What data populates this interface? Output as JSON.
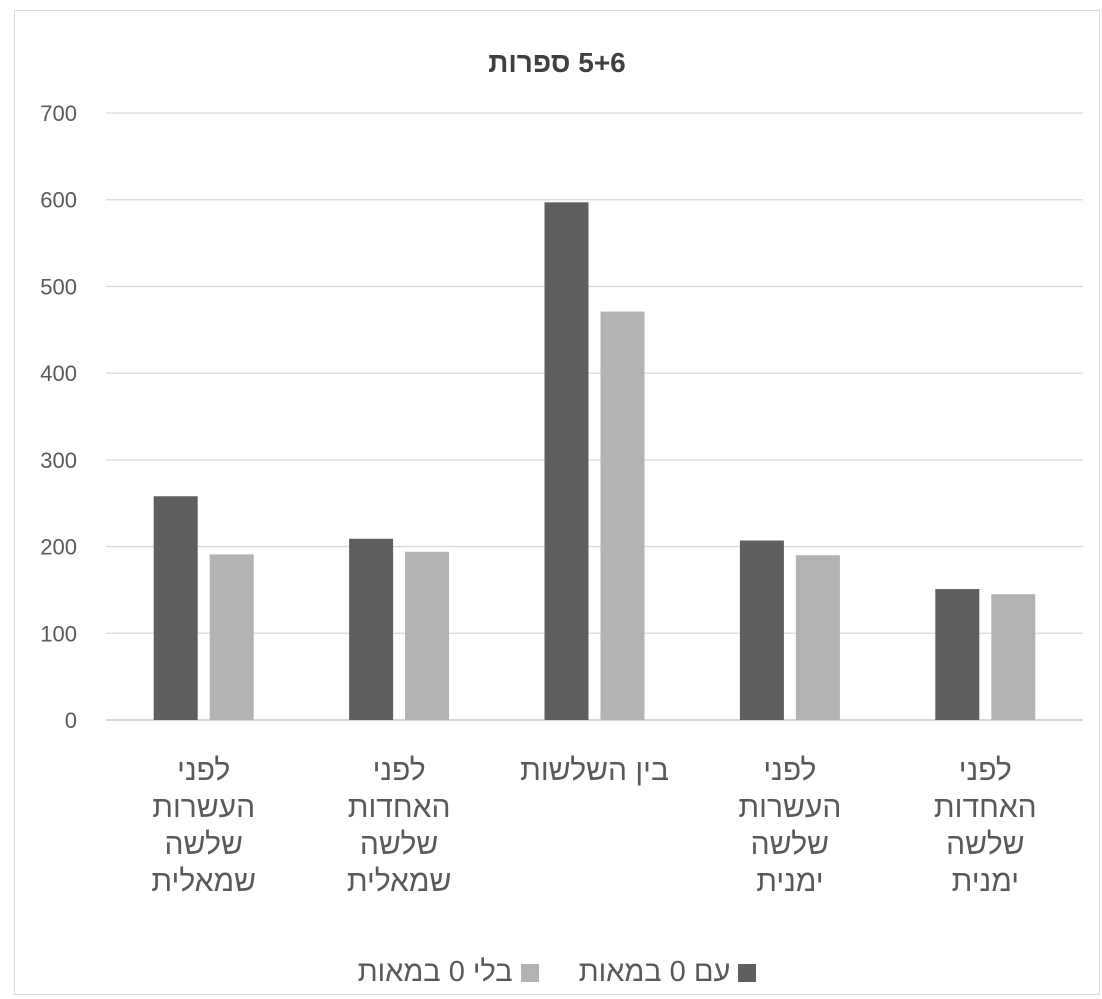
{
  "chart_data": {
    "type": "bar",
    "title": "5+6 ספרות",
    "categories": [
      "לפני העשרות שלשה שמאלית",
      "לפני האחדות שלשה שמאלית",
      "בין השלשות",
      "לפני העשרות שלשה ימנית",
      "לפני האחדות שלשה ימנית"
    ],
    "category_lines": [
      [
        "לפני",
        "העשרות",
        "שלשה",
        "שמאלית"
      ],
      [
        "לפני",
        "האחדות",
        "שלשה",
        "שמאלית"
      ],
      [
        "בין השלשות"
      ],
      [
        "לפני",
        "העשרות",
        "שלשה",
        "ימנית"
      ],
      [
        "לפני",
        "האחדות",
        "שלשה",
        "ימנית"
      ]
    ],
    "series": [
      {
        "name": "עם 0 במאות",
        "color": "#5f5f5f",
        "values": [
          258,
          209,
          597,
          207,
          151
        ]
      },
      {
        "name": "בלי 0 במאות",
        "color": "#b3b3b3",
        "values": [
          191,
          194,
          471,
          190,
          145
        ]
      }
    ],
    "ylim": [
      0,
      700
    ],
    "yticks": [
      0,
      100,
      200,
      300,
      400,
      500,
      600,
      700
    ],
    "grid": true,
    "legend_position": "bottom"
  }
}
